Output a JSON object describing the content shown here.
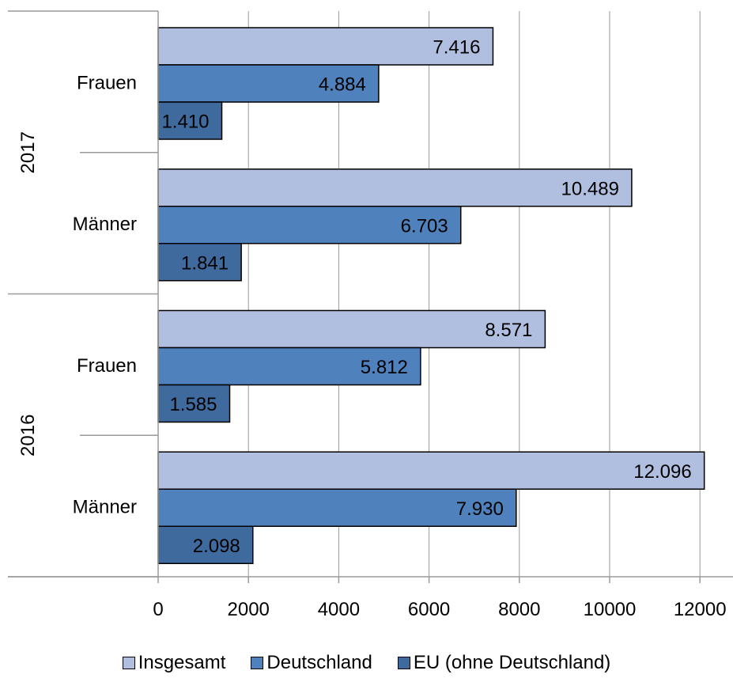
{
  "chart_data": {
    "type": "bar",
    "orientation": "horizontal",
    "groups": [
      {
        "year": "2017",
        "categories": [
          "Frauen",
          "Männer"
        ]
      },
      {
        "year": "2016",
        "categories": [
          "Frauen",
          "Männer"
        ]
      }
    ],
    "rows": [
      {
        "year": "2017",
        "category": "Frauen",
        "values": [
          7416,
          4884,
          1410
        ],
        "labels": [
          "7.416",
          "4.884",
          "1.410"
        ]
      },
      {
        "year": "2017",
        "category": "Männer",
        "values": [
          10489,
          6703,
          1841
        ],
        "labels": [
          "10.489",
          "6.703",
          "1.841"
        ]
      },
      {
        "year": "2016",
        "category": "Frauen",
        "values": [
          8571,
          5812,
          1585
        ],
        "labels": [
          "8.571",
          "5.812",
          "1.585"
        ]
      },
      {
        "year": "2016",
        "category": "Männer",
        "values": [
          12096,
          7930,
          2098
        ],
        "labels": [
          "12.096",
          "7.930",
          "2.098"
        ]
      }
    ],
    "series": [
      {
        "name": "Insgesamt",
        "color": "#b0bedf"
      },
      {
        "name": "Deutschland",
        "color": "#4f81bd"
      },
      {
        "name": "EU (ohne Deutschland)",
        "color": "#3f6a9e"
      }
    ],
    "xlim": [
      0,
      12000
    ],
    "xticks": [
      0,
      2000,
      4000,
      6000,
      8000,
      10000,
      12000
    ],
    "grid": true,
    "legend_position": "bottom"
  }
}
